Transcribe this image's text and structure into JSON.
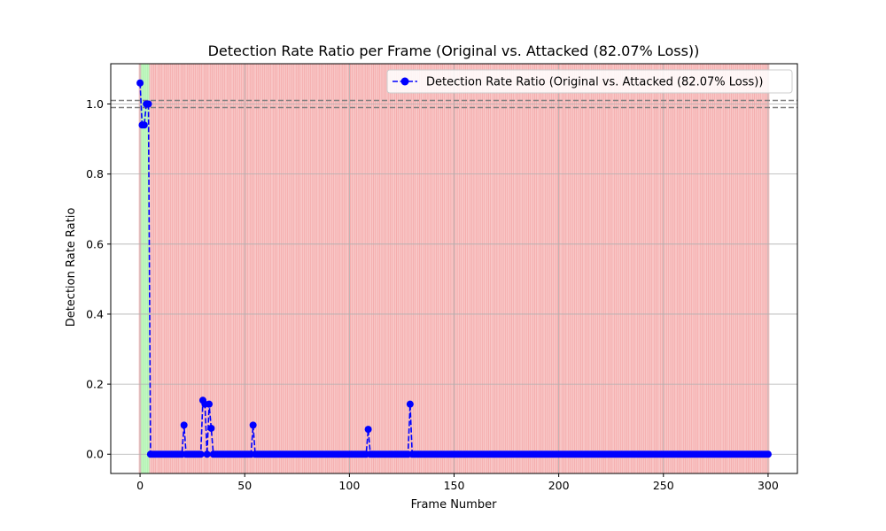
{
  "chart_data": {
    "type": "line",
    "title": "Detection Rate Ratio per Frame (Original vs. Attacked (82.07% Loss))",
    "xlabel": "Frame Number",
    "ylabel": "Detection Rate Ratio",
    "xlim": [
      -14,
      314
    ],
    "ylim": [
      -0.055,
      1.115
    ],
    "xticks": [
      0,
      50,
      100,
      150,
      200,
      250,
      300
    ],
    "yticks": [
      0.0,
      0.2,
      0.4,
      0.6,
      0.8,
      1.0
    ],
    "ytick_labels": [
      "0.0",
      "0.2",
      "0.4",
      "0.6",
      "0.8",
      "1.0"
    ],
    "grid": true,
    "legend": "top-right",
    "reference_lines": [
      0.99,
      1.01
    ],
    "n_frames": 301,
    "green_frames": [
      1,
      2,
      3,
      4
    ],
    "series": [
      {
        "name": "Detection Rate Ratio (Original vs. Attacked (82.07% Loss))",
        "color": "#0000ff",
        "linestyle": "dashed",
        "marker": "circle",
        "default_value": 0,
        "nonzero": {
          "0": 1.06,
          "1": 0.94,
          "2": 0.94,
          "3": 1.0,
          "4": 1.0,
          "21": 0.083,
          "30": 0.154,
          "31": 0.143,
          "33": 0.143,
          "34": 0.074,
          "54": 0.083,
          "109": 0.071,
          "129": 0.143
        }
      }
    ],
    "colors": {
      "red_band": "#f08080",
      "green_band": "#90ee90",
      "grid": "#b0b0b0",
      "ref_line": "#808080"
    }
  }
}
